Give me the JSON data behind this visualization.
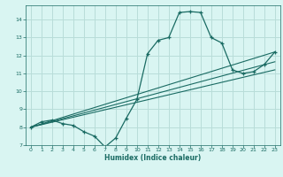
{
  "xlabel": "Humidex (Indice chaleur)",
  "bg_color": "#d9f5f2",
  "grid_color": "#b8ddd9",
  "line_color": "#1a6b63",
  "xlim": [
    -0.5,
    23.5
  ],
  "ylim": [
    7.0,
    14.8
  ],
  "xticks": [
    0,
    1,
    2,
    3,
    4,
    5,
    6,
    7,
    8,
    9,
    10,
    11,
    12,
    13,
    14,
    15,
    16,
    17,
    18,
    19,
    20,
    21,
    22,
    23
  ],
  "yticks": [
    7,
    8,
    9,
    10,
    11,
    12,
    13,
    14
  ],
  "line1_x": [
    0,
    1,
    2,
    3,
    4,
    5,
    6,
    7,
    8,
    9,
    10,
    11,
    12,
    13,
    14,
    15,
    16,
    17,
    18,
    19,
    20,
    21,
    22,
    23
  ],
  "line1_y": [
    8.0,
    8.3,
    8.4,
    8.2,
    8.1,
    7.75,
    7.5,
    6.9,
    7.4,
    8.5,
    9.55,
    12.1,
    12.85,
    13.0,
    14.4,
    14.45,
    14.4,
    13.0,
    12.7,
    11.2,
    11.0,
    11.1,
    11.5,
    12.2
  ],
  "line2_x": [
    0,
    23
  ],
  "line2_y": [
    8.0,
    12.2
  ],
  "line3_x": [
    0,
    23
  ],
  "line3_y": [
    8.0,
    11.65
  ],
  "line4_x": [
    0,
    23
  ],
  "line4_y": [
    8.0,
    11.2
  ]
}
